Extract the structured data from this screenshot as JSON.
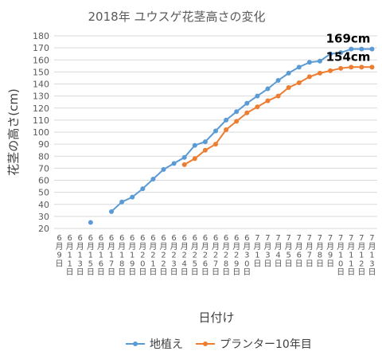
{
  "chart_data": {
    "type": "line",
    "title": "2018年 ユウスゲ花茎高さの変化",
    "xlabel": "日付け",
    "ylabel": "花茎の高さ(cm)",
    "ylim": [
      20,
      180
    ],
    "ytick_step": 10,
    "grid": true,
    "legend_position": "bottom",
    "categories": [
      "6月9日",
      "6月11日",
      "6月13日",
      "6月15日",
      "6月16日",
      "6月17日",
      "6月18日",
      "6月19日",
      "6月20日",
      "6月21日",
      "6月22日",
      "6月23日",
      "6月24日",
      "6月25日",
      "6月26日",
      "6月27日",
      "6月28日",
      "6月29日",
      "6月30日",
      "7月1日",
      "7月3日",
      "7月4日",
      "7月5日",
      "7月6日",
      "7月7日",
      "7月8日",
      "7月9日",
      "7月10日",
      "7月11日",
      "7月12日",
      "7月13日"
    ],
    "series": [
      {
        "name": "地植え",
        "color": "#5B9BD5",
        "values": [
          null,
          null,
          null,
          25,
          null,
          34,
          42,
          46,
          53,
          61,
          69,
          74,
          79,
          89,
          92,
          101,
          110,
          117,
          124,
          130,
          136,
          143,
          149,
          154,
          158,
          159,
          165,
          166,
          169,
          169,
          169
        ]
      },
      {
        "name": "プランター10年目",
        "color": "#ED7D31",
        "values": [
          null,
          null,
          null,
          null,
          null,
          null,
          null,
          null,
          null,
          null,
          null,
          null,
          73,
          78,
          85,
          90,
          102,
          109,
          116,
          121,
          126,
          130,
          137,
          141,
          146,
          149,
          151,
          153,
          154,
          154,
          154
        ]
      }
    ],
    "annotations": [
      "169cm",
      "154cm"
    ]
  }
}
